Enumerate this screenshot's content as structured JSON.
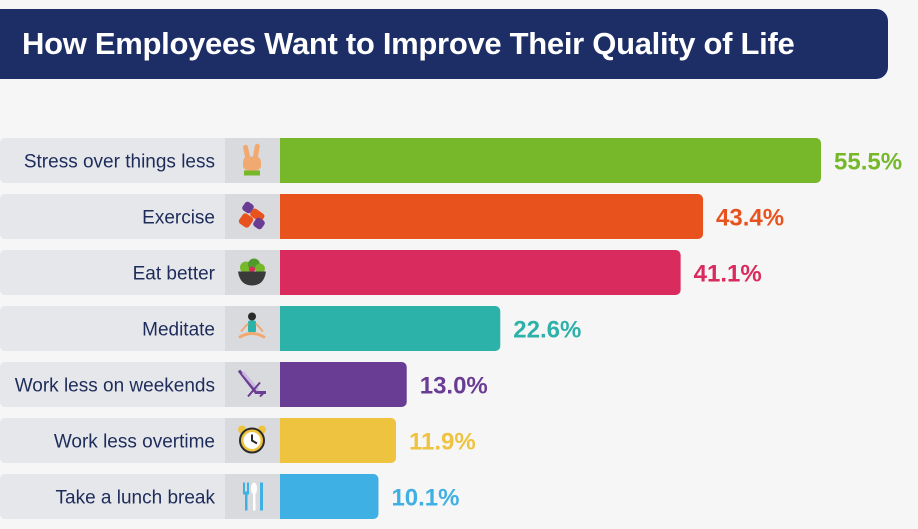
{
  "title": "How Employees Want to Improve Their Quality of Life",
  "chart_data": {
    "type": "bar",
    "orientation": "horizontal",
    "title": "How Employees Want to Improve Their Quality of Life",
    "categories": [
      "Stress over things less",
      "Exercise",
      "Eat better",
      "Meditate",
      "Work less on weekends",
      "Work less overtime",
      "Take a lunch break"
    ],
    "values": [
      55.5,
      43.4,
      41.1,
      22.6,
      13.0,
      11.9,
      10.1
    ],
    "value_labels": [
      "55.5%",
      "43.4%",
      "41.1%",
      "22.6%",
      "13.0%",
      "11.9%",
      "10.1%"
    ],
    "icons": [
      "peace-hand-icon",
      "dumbbell-icon",
      "salad-bowl-icon",
      "meditation-icon",
      "beach-chair-icon",
      "alarm-clock-icon",
      "cutlery-icon"
    ],
    "colors": [
      "#76b82a",
      "#e8531d",
      "#d92b5d",
      "#2db2aa",
      "#6a3d94",
      "#eec33f",
      "#3fb0e3"
    ],
    "unit": "%",
    "xlim": [
      0,
      55.5
    ],
    "xlabel": "",
    "ylabel": "",
    "grid": false
  }
}
